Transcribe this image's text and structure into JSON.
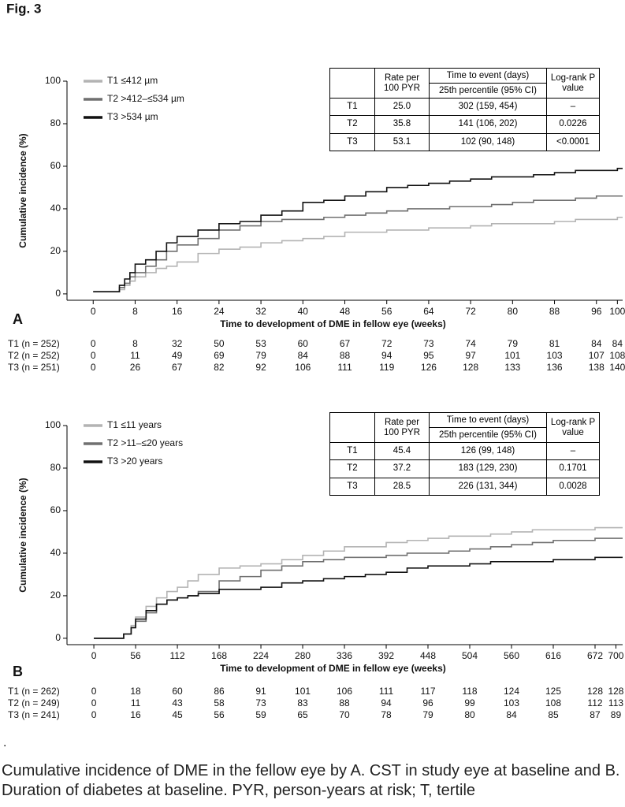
{
  "figure_label": "Fig. 3",
  "chart_data": [
    {
      "type": "line",
      "step": "post",
      "panel": "A",
      "ylabel": "Cumulative incidence (%)",
      "xlabel": "Time to development of DME in fellow eye (weeks)",
      "xlim": [
        -5,
        101
      ],
      "ylim": [
        -3,
        100
      ],
      "xticks": [
        0,
        8,
        16,
        24,
        32,
        40,
        48,
        56,
        64,
        72,
        80,
        88,
        96,
        100
      ],
      "yticks": [
        0,
        20,
        40,
        60,
        80,
        100
      ],
      "x": [
        0,
        4,
        5,
        6,
        7,
        8,
        10,
        12,
        14,
        16,
        20,
        24,
        28,
        32,
        36,
        40,
        44,
        48,
        52,
        56,
        60,
        64,
        68,
        72,
        76,
        80,
        84,
        88,
        92,
        96,
        100,
        101
      ],
      "series": [
        {
          "name": "T1 ≤412 µm",
          "color": "#b3b3b3",
          "values": [
            1,
            1,
            2,
            4,
            6,
            8,
            10,
            12,
            13,
            15,
            19,
            21,
            22,
            24,
            25,
            26,
            27,
            29,
            29,
            30,
            30,
            31,
            31,
            32,
            33,
            33,
            33,
            34,
            35,
            35,
            36,
            36
          ]
        },
        {
          "name": "T2 >412–≤534 µm",
          "color": "#707070",
          "values": [
            1,
            1,
            3,
            5,
            8,
            10,
            13,
            16,
            20,
            23,
            26,
            30,
            32,
            34,
            35,
            35,
            36,
            37,
            38,
            39,
            40,
            40,
            41,
            41,
            42,
            43,
            44,
            44,
            45,
            46,
            46,
            46
          ]
        },
        {
          "name": "T3 >534 µm",
          "color": "#111111",
          "values": [
            1,
            1,
            4,
            7,
            10,
            14,
            16,
            20,
            24,
            27,
            30,
            33,
            34,
            37,
            39,
            43,
            44,
            46,
            48,
            50,
            51,
            52,
            53,
            54,
            55,
            55,
            56,
            57,
            58,
            58,
            59,
            59
          ]
        }
      ],
      "table": {
        "header": {
          "rate": "Rate per 100 PYR",
          "time": "Time to event (days)",
          "percentile": "25th percentile (95% CI)",
          "logrank": "Log-rank P value"
        },
        "rows": [
          [
            "T1",
            "25.0",
            "302 (159, 454)",
            "–"
          ],
          [
            "T2",
            "35.8",
            "141 (106, 202)",
            "0.0226"
          ],
          [
            "T3",
            "53.1",
            "102 (90, 148)",
            "<0.0001"
          ]
        ]
      },
      "at_risk": [
        {
          "label": "T1 (n = 252)",
          "values": [
            0,
            8,
            32,
            50,
            53,
            60,
            67,
            72,
            73,
            74,
            79,
            81,
            84,
            84
          ]
        },
        {
          "label": "T2 (n = 252)",
          "values": [
            0,
            11,
            49,
            69,
            79,
            84,
            88,
            94,
            95,
            97,
            101,
            103,
            107,
            108
          ]
        },
        {
          "label": "T3 (n = 251)",
          "values": [
            0,
            26,
            67,
            82,
            92,
            106,
            111,
            119,
            126,
            128,
            133,
            136,
            138,
            140
          ]
        }
      ]
    },
    {
      "type": "line",
      "step": "post",
      "panel": "B",
      "ylabel": "Cumulative incidence (%)",
      "xlabel": "Time to development of DME in fellow eye (weeks)",
      "xlim": [
        -36,
        709
      ],
      "ylim": [
        -3,
        100
      ],
      "xticks": [
        0,
        56,
        112,
        168,
        224,
        280,
        336,
        392,
        448,
        504,
        560,
        616,
        672,
        700
      ],
      "yticks": [
        0,
        20,
        40,
        60,
        80,
        100
      ],
      "x": [
        0,
        30,
        40,
        50,
        56,
        70,
        84,
        98,
        112,
        126,
        140,
        168,
        196,
        224,
        252,
        280,
        308,
        336,
        364,
        392,
        420,
        448,
        476,
        504,
        532,
        560,
        588,
        616,
        644,
        672,
        700,
        709
      ],
      "series": [
        {
          "name": "T1 ≤11 years",
          "color": "#b3b3b3",
          "values": [
            0,
            0,
            2,
            6,
            10,
            15,
            19,
            22,
            24,
            27,
            30,
            33,
            34,
            35,
            37,
            39,
            41,
            43,
            43,
            45,
            46,
            47,
            48,
            48,
            49,
            50,
            51,
            51,
            51,
            52,
            52,
            52
          ]
        },
        {
          "name": "T2 >11–≤20 years",
          "color": "#707070",
          "values": [
            0,
            0,
            2,
            5,
            8,
            12,
            16,
            18,
            19,
            20,
            22,
            27,
            29,
            32,
            34,
            36,
            37,
            38,
            38,
            39,
            40,
            40,
            41,
            42,
            43,
            44,
            45,
            46,
            46,
            47,
            47,
            47
          ]
        },
        {
          "name": "T3 >20 years",
          "color": "#111111",
          "values": [
            0,
            0,
            2,
            5,
            9,
            13,
            16,
            18,
            19,
            20,
            21,
            23,
            23,
            24,
            26,
            27,
            28,
            29,
            30,
            31,
            33,
            34,
            34,
            35,
            36,
            36,
            36,
            37,
            37,
            38,
            38,
            38
          ]
        }
      ],
      "table": {
        "header": {
          "rate": "Rate per 100 PYR",
          "time": "Time to event (days)",
          "percentile": "25th percentile (95% CI)",
          "logrank": "Log-rank P value"
        },
        "rows": [
          [
            "T1",
            "45.4",
            "126 (99, 148)",
            "–"
          ],
          [
            "T2",
            "37.2",
            "183 (129, 230)",
            "0.1701"
          ],
          [
            "T3",
            "28.5",
            "226 (131, 344)",
            "0.0028"
          ]
        ]
      },
      "at_risk": [
        {
          "label": "T1 (n = 262)",
          "values": [
            0,
            18,
            60,
            86,
            91,
            101,
            106,
            111,
            117,
            118,
            124,
            125,
            128,
            128
          ]
        },
        {
          "label": "T2 (n = 249)",
          "values": [
            0,
            11,
            43,
            58,
            73,
            83,
            88,
            94,
            96,
            99,
            103,
            108,
            112,
            113
          ]
        },
        {
          "label": "T3 (n = 241)",
          "values": [
            0,
            16,
            45,
            56,
            59,
            65,
            70,
            78,
            79,
            80,
            84,
            85,
            87,
            89
          ]
        }
      ]
    }
  ],
  "note": ".",
  "caption": "Cumulative incidence of DME in the fellow eye by A. CST in study eye at baseline and B. Duration of diabetes at baseline. PYR, person-years at risk; T, tertile"
}
